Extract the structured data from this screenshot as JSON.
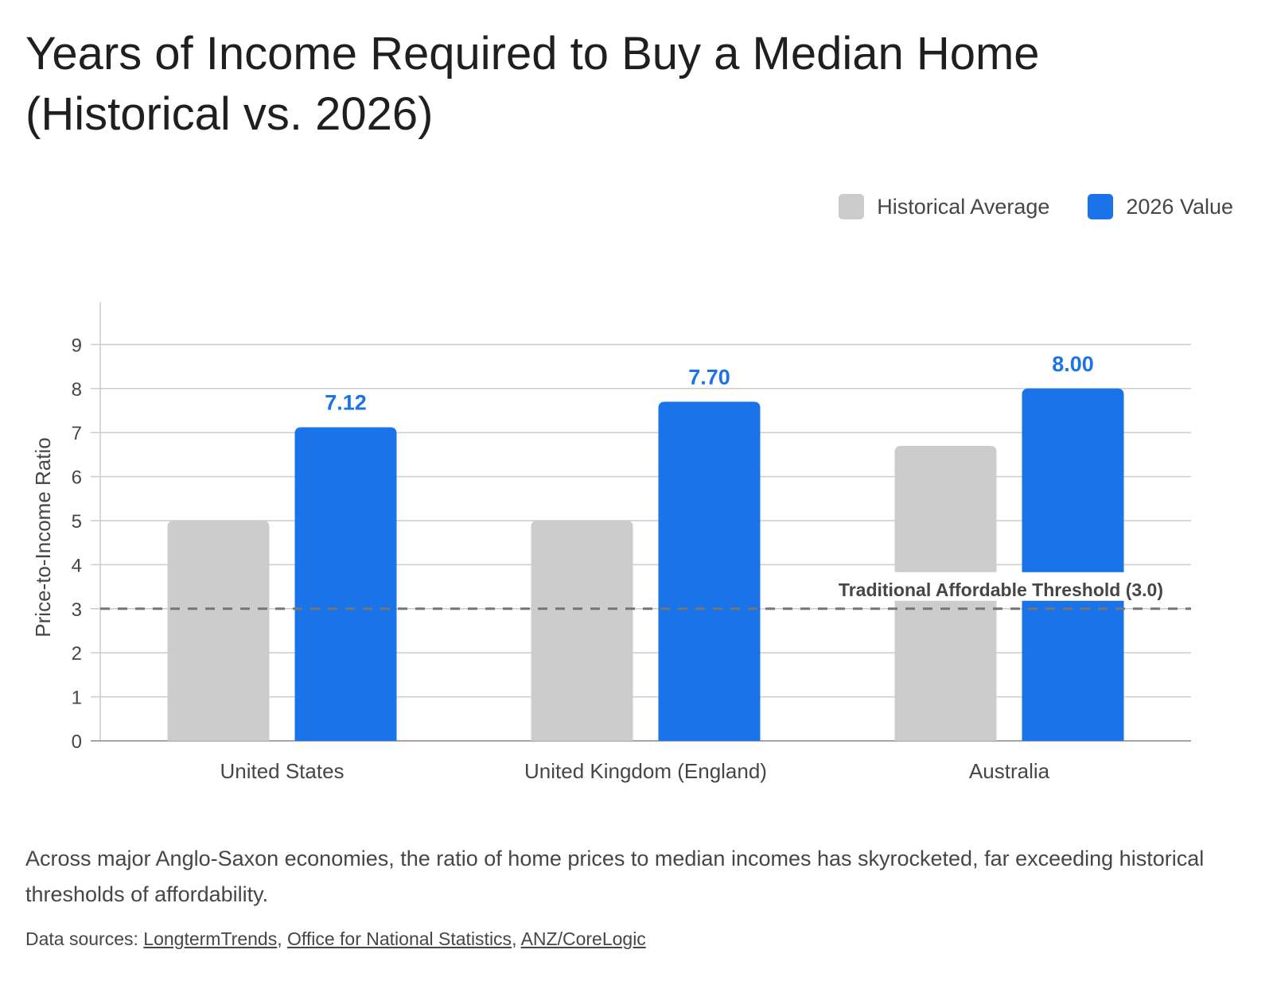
{
  "chart_data": {
    "type": "bar",
    "title_line1": "Years of Income Required to Buy a Median Home",
    "title_line2": "(Historical vs. 2026)",
    "ylabel": "Price-to-Income Ratio",
    "xlabel": "",
    "ylim": [
      0,
      9
    ],
    "yticks": [
      "0",
      "1",
      "2",
      "3",
      "4",
      "5",
      "6",
      "7",
      "8",
      "9"
    ],
    "grid": true,
    "legend_position": "top-right",
    "categories": [
      "United States",
      "United Kingdom (England)",
      "Australia"
    ],
    "series": [
      {
        "name": "Historical Average",
        "color": "#cccccc",
        "values": [
          5.0,
          5.0,
          6.7
        ],
        "labels": [
          "",
          "",
          ""
        ]
      },
      {
        "name": "2026 Value",
        "color": "#1a73e8",
        "values": [
          7.12,
          7.7,
          8.0
        ],
        "labels": [
          "7.12",
          "7.70",
          "8.00"
        ]
      }
    ],
    "threshold": {
      "value": 3.0,
      "label": "Traditional Affordable Threshold (3.0)"
    }
  },
  "caption": "Across major Anglo-Saxon economies, the ratio of home prices to median incomes has skyrocketed, far exceeding historical thresholds of affordability.",
  "sources": {
    "prefix": "Data sources: ",
    "links": [
      "LongtermTrends",
      "Office for National Statistics",
      "ANZ/CoreLogic"
    ],
    "separator": ", "
  }
}
